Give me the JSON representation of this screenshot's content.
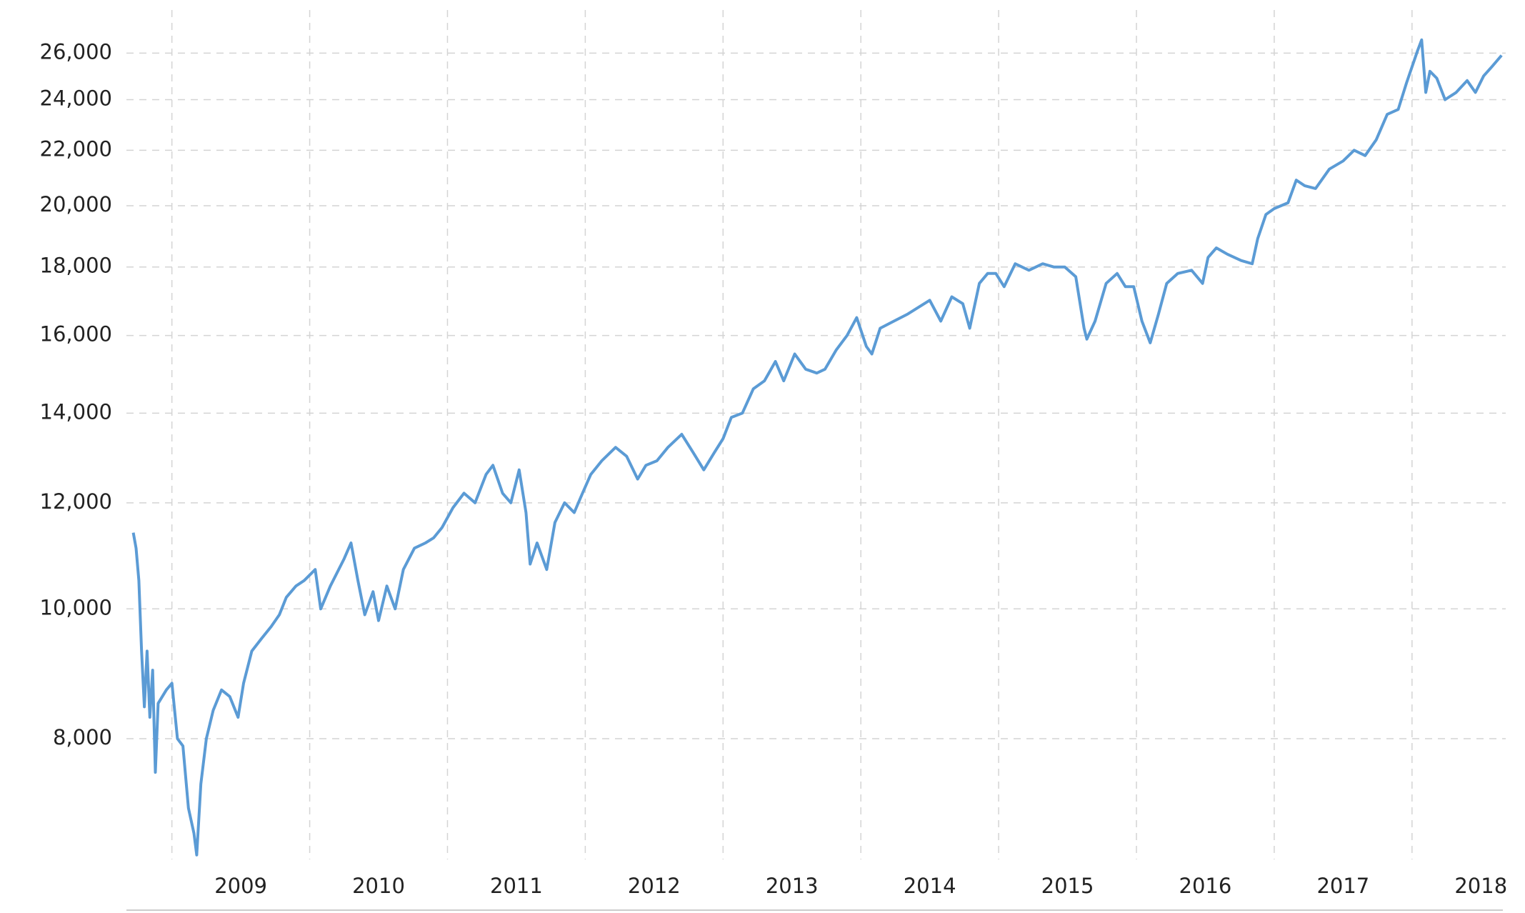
{
  "chart_data": {
    "type": "line",
    "log_y": true,
    "grid": true,
    "xlim": [
      2008.67,
      2018.68
    ],
    "xticks": [
      2009,
      2010,
      2011,
      2012,
      2013,
      2014,
      2015,
      2016,
      2017,
      2018
    ],
    "ylim": [
      6500,
      28000
    ],
    "yticks": [
      {
        "value": 8000,
        "label": "8,000"
      },
      {
        "value": 10000,
        "label": "10,000"
      },
      {
        "value": 12000,
        "label": "12,000"
      },
      {
        "value": 14000,
        "label": "14,000"
      },
      {
        "value": 16000,
        "label": "16,000"
      },
      {
        "value": 18000,
        "label": "18,000"
      },
      {
        "value": 20000,
        "label": "20,000"
      },
      {
        "value": 22000,
        "label": "22,000"
      },
      {
        "value": 24000,
        "label": "24,000"
      },
      {
        "value": 26000,
        "label": "26,000"
      }
    ],
    "x": [
      2008.72,
      2008.74,
      2008.76,
      2008.78,
      2008.8,
      2008.82,
      2008.84,
      2008.86,
      2008.88,
      2008.9,
      2008.93,
      2008.96,
      2009.0,
      2009.04,
      2009.08,
      2009.12,
      2009.16,
      2009.18,
      2009.21,
      2009.25,
      2009.3,
      2009.36,
      2009.42,
      2009.48,
      2009.52,
      2009.58,
      2009.65,
      2009.72,
      2009.78,
      2009.83,
      2009.9,
      2009.96,
      2010.04,
      2010.08,
      2010.15,
      2010.25,
      2010.3,
      2010.35,
      2010.4,
      2010.46,
      2010.5,
      2010.56,
      2010.62,
      2010.68,
      2010.76,
      2010.84,
      2010.9,
      2010.96,
      2011.04,
      2011.12,
      2011.2,
      2011.28,
      2011.33,
      2011.4,
      2011.46,
      2011.52,
      2011.57,
      2011.6,
      2011.65,
      2011.72,
      2011.78,
      2011.85,
      2011.92,
      2011.98,
      2012.04,
      2012.12,
      2012.22,
      2012.3,
      2012.38,
      2012.44,
      2012.52,
      2012.6,
      2012.7,
      2012.78,
      2012.86,
      2012.94,
      2013.0,
      2013.06,
      2013.14,
      2013.22,
      2013.3,
      2013.38,
      2013.44,
      2013.52,
      2013.6,
      2013.68,
      2013.74,
      2013.82,
      2013.9,
      2013.97,
      2014.04,
      2014.08,
      2014.14,
      2014.24,
      2014.34,
      2014.42,
      2014.5,
      2014.58,
      2014.66,
      2014.74,
      2014.79,
      2014.86,
      2014.92,
      2014.98,
      2015.04,
      2015.12,
      2015.22,
      2015.32,
      2015.4,
      2015.48,
      2015.56,
      2015.62,
      2015.64,
      2015.7,
      2015.78,
      2015.86,
      2015.92,
      2015.98,
      2016.04,
      2016.1,
      2016.16,
      2016.22,
      2016.3,
      2016.4,
      2016.48,
      2016.52,
      2016.58,
      2016.66,
      2016.76,
      2016.84,
      2016.88,
      2016.94,
      2017.0,
      2017.1,
      2017.16,
      2017.22,
      2017.3,
      2017.4,
      2017.5,
      2017.58,
      2017.66,
      2017.74,
      2017.82,
      2017.9,
      2017.96,
      2018.04,
      2018.07,
      2018.1,
      2018.13,
      2018.18,
      2018.24,
      2018.32,
      2018.4,
      2018.46,
      2018.52,
      2018.58,
      2018.65
    ],
    "series": [
      {
        "color": "#5b9bd5",
        "values": [
          11400,
          11100,
          10500,
          9300,
          8450,
          9300,
          8300,
          9000,
          7550,
          8500,
          8600,
          8700,
          8800,
          8000,
          7900,
          7100,
          6800,
          6550,
          7400,
          8000,
          8400,
          8700,
          8600,
          8300,
          8800,
          9300,
          9500,
          9700,
          9900,
          10200,
          10400,
          10500,
          10700,
          10000,
          10400,
          10900,
          11200,
          10500,
          9900,
          10300,
          9800,
          10400,
          10000,
          10700,
          11100,
          11200,
          11300,
          11500,
          11900,
          12200,
          12000,
          12600,
          12800,
          12200,
          12000,
          12700,
          11800,
          10800,
          11200,
          10700,
          11600,
          12000,
          11800,
          12200,
          12600,
          12900,
          13200,
          13000,
          12500,
          12800,
          12900,
          13200,
          13500,
          13100,
          12700,
          13100,
          13400,
          13900,
          14000,
          14600,
          14800,
          15300,
          14800,
          15500,
          15100,
          15000,
          15100,
          15600,
          16000,
          16500,
          15700,
          15500,
          16200,
          16400,
          16600,
          16800,
          17000,
          16400,
          17100,
          16900,
          16200,
          17500,
          17800,
          17800,
          17400,
          18100,
          17900,
          18100,
          18000,
          18000,
          17700,
          16200,
          15900,
          16400,
          17500,
          17800,
          17400,
          17400,
          16400,
          15800,
          16600,
          17500,
          17800,
          17900,
          17500,
          18300,
          18600,
          18400,
          18200,
          18100,
          18900,
          19700,
          19900,
          20100,
          20900,
          20700,
          20600,
          21300,
          21600,
          22000,
          21800,
          22400,
          23400,
          23600,
          24700,
          26100,
          26600,
          24300,
          25200,
          24900,
          24000,
          24300,
          24800,
          24300,
          25000,
          25400,
          25900
        ]
      }
    ]
  }
}
